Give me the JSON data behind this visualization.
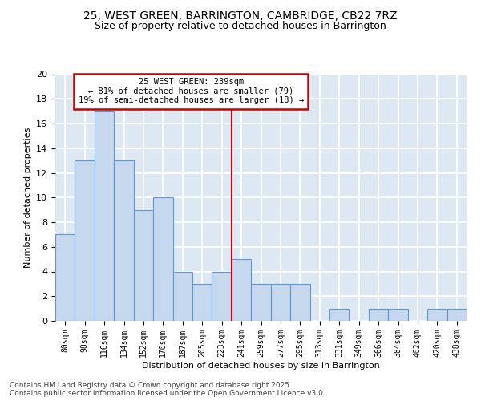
{
  "title_line1": "25, WEST GREEN, BARRINGTON, CAMBRIDGE, CB22 7RZ",
  "title_line2": "Size of property relative to detached houses in Barrington",
  "xlabel": "Distribution of detached houses by size in Barrington",
  "ylabel": "Number of detached properties",
  "categories": [
    "80sqm",
    "98sqm",
    "116sqm",
    "134sqm",
    "152sqm",
    "170sqm",
    "187sqm",
    "205sqm",
    "223sqm",
    "241sqm",
    "259sqm",
    "277sqm",
    "295sqm",
    "313sqm",
    "331sqm",
    "349sqm",
    "366sqm",
    "384sqm",
    "402sqm",
    "420sqm",
    "438sqm"
  ],
  "values": [
    7,
    13,
    17,
    13,
    9,
    10,
    4,
    3,
    4,
    5,
    3,
    3,
    3,
    0,
    1,
    0,
    1,
    1,
    0,
    1,
    1
  ],
  "bar_color": "#c5d8ee",
  "bar_edge_color": "#5b9bd5",
  "vline_idx": 9,
  "vline_color": "#cc0000",
  "annotation_line1": "25 WEST GREEN: 239sqm",
  "annotation_line2": "← 81% of detached houses are smaller (79)",
  "annotation_line3": "19% of semi-detached houses are larger (18) →",
  "annotation_box_color": "#cc0000",
  "background_color": "#dde8f3",
  "grid_color": "#ffffff",
  "ylim": [
    0,
    20
  ],
  "yticks": [
    0,
    2,
    4,
    6,
    8,
    10,
    12,
    14,
    16,
    18,
    20
  ],
  "footer_text": "Contains HM Land Registry data © Crown copyright and database right 2025.\nContains public sector information licensed under the Open Government Licence v3.0.",
  "title_fontsize": 10,
  "subtitle_fontsize": 9,
  "axis_label_fontsize": 8,
  "tick_fontsize": 7,
  "annotation_fontsize": 7.5,
  "footer_fontsize": 6.5
}
